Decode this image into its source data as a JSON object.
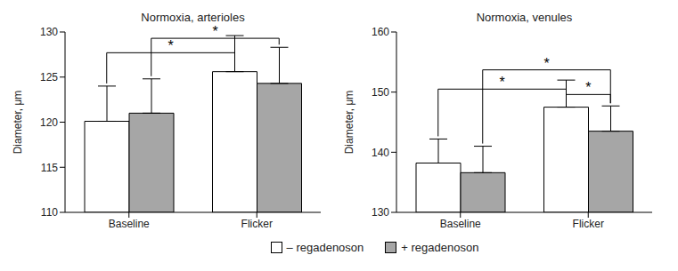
{
  "chart_data": [
    {
      "type": "bar",
      "title": "Normoxia, arterioles",
      "y_label": "Diameter, μm",
      "categories": [
        "Baseline",
        "Flicker"
      ],
      "series": [
        {
          "name": "– regadenoson",
          "color": "#ffffff",
          "values": [
            120.1,
            125.6
          ],
          "errors": [
            3.9,
            4.0
          ]
        },
        {
          "name": "+ regadenoson",
          "color": "#a6a6a6",
          "values": [
            121.0,
            124.3
          ],
          "errors": [
            3.8,
            4.0
          ]
        }
      ],
      "ylim": [
        110,
        130
      ],
      "yticks": [
        110,
        115,
        120,
        125,
        130
      ],
      "grid": false,
      "legend": "bottom",
      "significance": [
        {
          "from": [
            0,
            0
          ],
          "to": [
            1,
            0
          ],
          "y": 127.7,
          "label": "*"
        },
        {
          "from": [
            0,
            1
          ],
          "to": [
            1,
            1
          ],
          "y": 129.3,
          "label": "*"
        }
      ]
    },
    {
      "type": "bar",
      "title": "Normoxia, venules",
      "y_label": "Diameter, μm",
      "categories": [
        "Baseline",
        "Flicker"
      ],
      "series": [
        {
          "name": "– regadenoson",
          "color": "#ffffff",
          "values": [
            138.2,
            147.5
          ],
          "errors": [
            4.0,
            4.5
          ]
        },
        {
          "name": "+ regadenoson",
          "color": "#a6a6a6",
          "values": [
            136.6,
            143.5
          ],
          "errors": [
            4.4,
            4.2
          ]
        }
      ],
      "ylim": [
        130,
        160
      ],
      "yticks": [
        130,
        140,
        150,
        160
      ],
      "grid": false,
      "significance": [
        {
          "from": [
            0,
            0
          ],
          "to": [
            1,
            0
          ],
          "y": 150.5,
          "label": "*"
        },
        {
          "from": [
            0,
            1
          ],
          "to": [
            1,
            1
          ],
          "y": 153.7,
          "label": "*"
        },
        {
          "from": [
            1,
            0
          ],
          "to": [
            1,
            1
          ],
          "y": 149.6,
          "label": "*"
        }
      ]
    }
  ]
}
